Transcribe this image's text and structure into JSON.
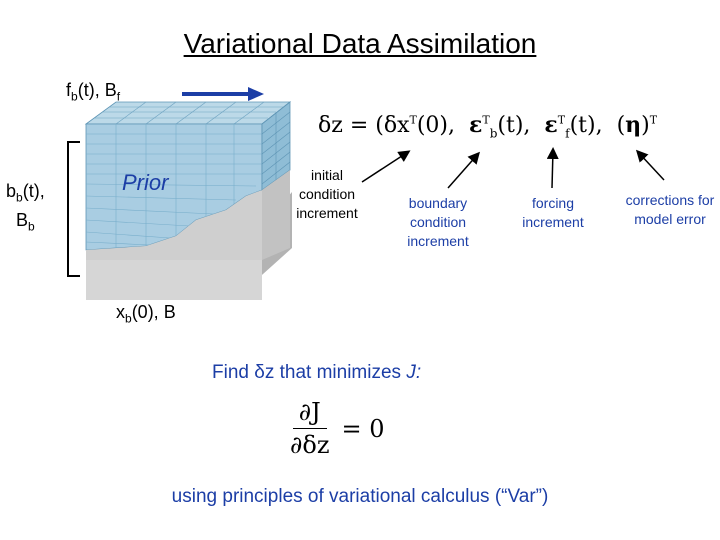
{
  "title": "Variational Data Assimilation",
  "fb_label_main": "f",
  "fb_label_sub": "b",
  "fb_label_rest": "(t),  B",
  "fb_label_sub2": "f",
  "bb_line1_main": "b",
  "bb_line1_sub": "b",
  "bb_line1_rest": "(t),",
  "bb_line2_main": "B",
  "bb_line2_sub": "b",
  "xb_main": "x",
  "xb_sub": "b",
  "xb_rest": "(0), B",
  "prior_label": "Prior",
  "equation": {
    "lhs": "δz = (δx",
    "sup_T": "T",
    "part1": "(0),",
    "part2": "(t),",
    "part3": "(t),",
    "part4": "(",
    "part5": ")",
    "sub_b": "b",
    "sub_f": "f"
  },
  "labels": {
    "initial": "initial condition increment",
    "boundary": "boundary condition increment",
    "forcing": "forcing increment",
    "corrections": "corrections for model error"
  },
  "find_text_pre": "Find ",
  "find_text_dz": "δz",
  "find_text_mid": " that minimizes ",
  "find_text_J": "J:",
  "deriv": {
    "num": "∂J",
    "den": "∂δz",
    "rhs": "= 0"
  },
  "var_text": "using principles of variational calculus (“Var”)",
  "colors": {
    "blue": "#1c3ea6",
    "grid_top": "#9fc6dc",
    "grid_side": "#7fb3cf",
    "base": "#b0b0b0"
  }
}
